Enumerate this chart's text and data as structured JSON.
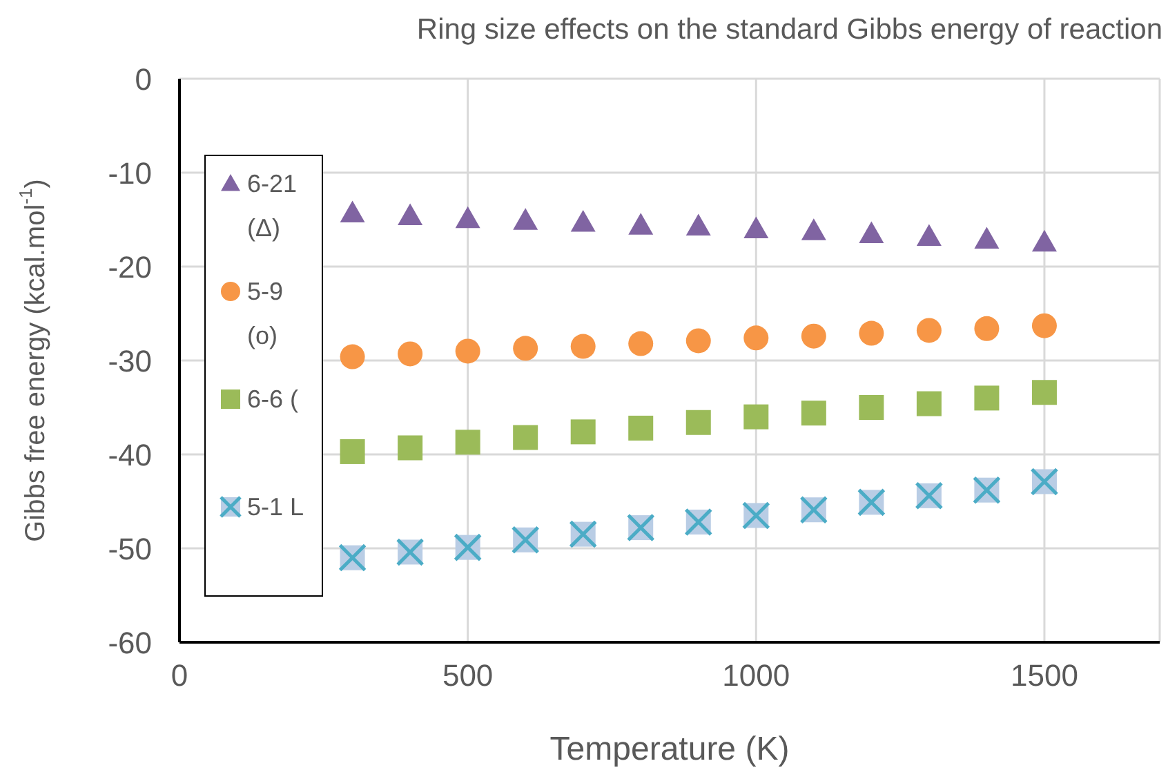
{
  "chart_data": {
    "type": "scatter",
    "title": "Ring size effects on the standard Gibbs energy of reaction",
    "xlabel": "Temperature (K)",
    "ylabel": "Gibbs free energy (kcal.mol$^{-1}$)",
    "x": [
      300,
      400,
      500,
      600,
      700,
      800,
      900,
      1000,
      1100,
      1200,
      1300,
      1400,
      1500
    ],
    "series": [
      {
        "name": "6-21 (Δ)",
        "color": "#8064a2",
        "marker": "triangle",
        "values": [
          -14.3,
          -14.6,
          -14.9,
          -15.1,
          -15.3,
          -15.6,
          -15.7,
          -16.0,
          -16.2,
          -16.5,
          -16.8,
          -17.1,
          -17.4
        ]
      },
      {
        "name": "5-9 (o)",
        "color": "#f79646",
        "marker": "circle",
        "values": [
          -29.6,
          -29.3,
          -29.0,
          -28.7,
          -28.5,
          -28.2,
          -27.9,
          -27.6,
          -27.4,
          -27.1,
          -26.8,
          -26.6,
          -26.3
        ]
      },
      {
        "name": "6-6 (",
        "color": "#9bbb59",
        "marker": "square",
        "values": [
          -39.7,
          -39.3,
          -38.7,
          -38.2,
          -37.6,
          -37.2,
          -36.6,
          -36.0,
          -35.6,
          -35.0,
          -34.6,
          -34.0,
          -33.4
        ]
      },
      {
        "name": "5-1 L",
        "color": "#4bacc6",
        "marker": "cross",
        "values": [
          -51.0,
          -50.4,
          -49.9,
          -49.1,
          -48.5,
          -47.8,
          -47.2,
          -46.5,
          -45.9,
          -45.1,
          -44.4,
          -43.8,
          -42.9
        ]
      }
    ],
    "xlim": [
      0,
      1700
    ],
    "xticks": [
      0,
      500,
      1000,
      1500
    ],
    "ylim": [
      -60,
      0
    ],
    "yticks": [
      -60,
      -50,
      -40,
      -30,
      -20,
      -10,
      0
    ],
    "grid": true,
    "legend": "left"
  }
}
